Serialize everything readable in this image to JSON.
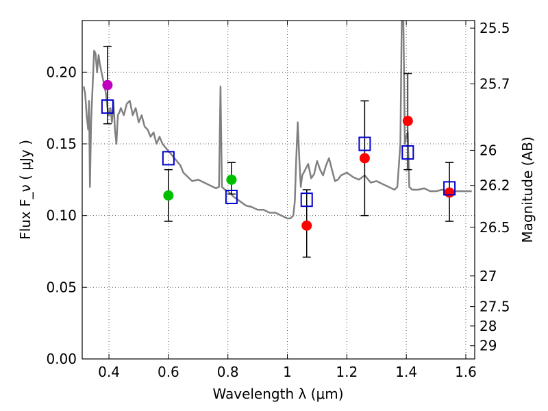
{
  "chart_data": {
    "type": "scatter",
    "xlabel": "Wavelength  λ (μm)",
    "ylabel": "Flux  F_ν  ( μJy )",
    "ylabel_right": "Magnitude (AB)",
    "xlim": [
      0.31,
      1.63
    ],
    "ylim": [
      0.0,
      0.236
    ],
    "grid": true,
    "x_ticks": [
      {
        "value": 0.4,
        "label": "0.4"
      },
      {
        "value": 0.6,
        "label": "0.6"
      },
      {
        "value": 0.8,
        "label": "0.8"
      },
      {
        "value": 1.0,
        "label": "1"
      },
      {
        "value": 1.2,
        "label": "1.2"
      },
      {
        "value": 1.4,
        "label": "1.4"
      },
      {
        "value": 1.6,
        "label": "1.6"
      }
    ],
    "y_ticks": [
      {
        "value": 0.0,
        "label": "0.00"
      },
      {
        "value": 0.05,
        "label": "0.05"
      },
      {
        "value": 0.1,
        "label": "0.10"
      },
      {
        "value": 0.15,
        "label": "0.15"
      },
      {
        "value": 0.2,
        "label": "0.20"
      }
    ],
    "y_right_ticks": [
      {
        "label": "25.5",
        "flux": 0.2307
      },
      {
        "label": "25.7",
        "flux": 0.1918
      },
      {
        "label": "26",
        "flux": 0.1455
      },
      {
        "label": "26.2",
        "flux": 0.121
      },
      {
        "label": "26.5",
        "flux": 0.0918
      },
      {
        "label": "27",
        "flux": 0.0579
      },
      {
        "label": "27.5",
        "flux": 0.0365
      },
      {
        "label": "28",
        "flux": 0.023
      },
      {
        "label": "29",
        "flux": 0.0092
      }
    ],
    "model_sed": {
      "color": "#808080",
      "x": [
        0.315,
        0.32,
        0.325,
        0.33,
        0.333,
        0.336,
        0.34,
        0.345,
        0.35,
        0.355,
        0.36,
        0.365,
        0.37,
        0.375,
        0.38,
        0.385,
        0.39,
        0.395,
        0.4,
        0.405,
        0.41,
        0.415,
        0.42,
        0.425,
        0.43,
        0.435,
        0.44,
        0.45,
        0.46,
        0.47,
        0.48,
        0.49,
        0.5,
        0.51,
        0.52,
        0.53,
        0.54,
        0.55,
        0.56,
        0.57,
        0.58,
        0.6,
        0.62,
        0.64,
        0.65,
        0.66,
        0.68,
        0.7,
        0.72,
        0.74,
        0.76,
        0.77,
        0.775,
        0.78,
        0.785,
        0.79,
        0.8,
        0.82,
        0.84,
        0.86,
        0.88,
        0.9,
        0.92,
        0.94,
        0.96,
        0.98,
        1.0,
        1.01,
        1.02,
        1.025,
        1.03,
        1.035,
        1.04,
        1.045,
        1.05,
        1.06,
        1.07,
        1.08,
        1.09,
        1.1,
        1.11,
        1.12,
        1.13,
        1.14,
        1.15,
        1.16,
        1.17,
        1.18,
        1.2,
        1.22,
        1.24,
        1.26,
        1.28,
        1.3,
        1.32,
        1.34,
        1.36,
        1.37,
        1.38,
        1.385,
        1.39,
        1.395,
        1.4,
        1.405,
        1.41,
        1.42,
        1.44,
        1.46,
        1.48,
        1.5,
        1.52,
        1.54,
        1.56,
        1.58,
        1.6,
        1.62
      ],
      "y": [
        0.19,
        0.185,
        0.17,
        0.16,
        0.18,
        0.12,
        0.165,
        0.19,
        0.215,
        0.213,
        0.2,
        0.212,
        0.205,
        0.2,
        0.195,
        0.19,
        0.185,
        0.175,
        0.17,
        0.175,
        0.165,
        0.18,
        0.16,
        0.15,
        0.17,
        0.172,
        0.175,
        0.17,
        0.178,
        0.18,
        0.17,
        0.175,
        0.165,
        0.17,
        0.162,
        0.16,
        0.155,
        0.158,
        0.15,
        0.155,
        0.15,
        0.145,
        0.14,
        0.135,
        0.13,
        0.128,
        0.124,
        0.125,
        0.123,
        0.121,
        0.119,
        0.12,
        0.19,
        0.12,
        0.119,
        0.118,
        0.117,
        0.113,
        0.11,
        0.107,
        0.106,
        0.104,
        0.104,
        0.102,
        0.102,
        0.1,
        0.098,
        0.098,
        0.1,
        0.11,
        0.14,
        0.165,
        0.14,
        0.12,
        0.128,
        0.132,
        0.136,
        0.126,
        0.129,
        0.138,
        0.132,
        0.128,
        0.135,
        0.14,
        0.132,
        0.124,
        0.125,
        0.128,
        0.13,
        0.127,
        0.125,
        0.128,
        0.123,
        0.124,
        0.122,
        0.12,
        0.118,
        0.12,
        0.15,
        0.24,
        0.24,
        0.15,
        0.155,
        0.158,
        0.12,
        0.118,
        0.118,
        0.119,
        0.117,
        0.117,
        0.118,
        0.117,
        0.117,
        0.117,
        0.117,
        0.117
      ]
    },
    "error_bars": [
      {
        "x": 0.395,
        "low": 0.164,
        "high": 0.218
      },
      {
        "x": 0.6,
        "low": 0.096,
        "high": 0.132
      },
      {
        "x": 0.812,
        "low": 0.115,
        "high": 0.137
      },
      {
        "x": 1.065,
        "low": 0.071,
        "high": 0.118
      },
      {
        "x": 1.26,
        "low": 0.1,
        "high": 0.18
      },
      {
        "x": 1.405,
        "low": 0.132,
        "high": 0.199
      },
      {
        "x": 1.545,
        "low": 0.096,
        "high": 0.137
      }
    ],
    "series": [
      {
        "marker": "circle",
        "points": [
          {
            "x": 0.395,
            "y": 0.191,
            "color": "#bf00bf"
          },
          {
            "x": 0.6,
            "y": 0.114,
            "color": "#00bf00"
          },
          {
            "x": 0.812,
            "y": 0.125,
            "color": "#00bf00"
          },
          {
            "x": 1.065,
            "y": 0.093,
            "color": "#ff0000"
          },
          {
            "x": 1.26,
            "y": 0.14,
            "color": "#ff0000"
          },
          {
            "x": 1.405,
            "y": 0.166,
            "color": "#ff0000"
          },
          {
            "x": 1.545,
            "y": 0.116,
            "color": "#ff0000"
          }
        ]
      },
      {
        "marker": "open-square",
        "color": "#0000cc",
        "points": [
          {
            "x": 0.395,
            "y": 0.176
          },
          {
            "x": 0.6,
            "y": 0.14
          },
          {
            "x": 0.812,
            "y": 0.113
          },
          {
            "x": 1.065,
            "y": 0.111
          },
          {
            "x": 1.26,
            "y": 0.15
          },
          {
            "x": 1.405,
            "y": 0.144
          },
          {
            "x": 1.545,
            "y": 0.119
          }
        ]
      }
    ]
  }
}
